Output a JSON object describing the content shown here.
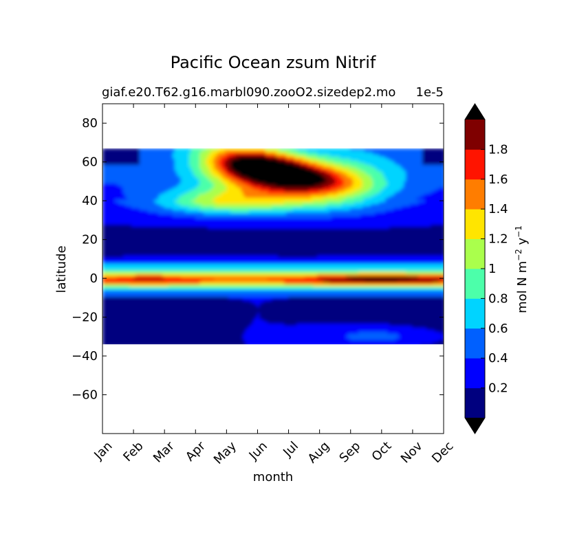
{
  "chart_data": {
    "type": "heatmap",
    "title": "Pacific Ocean zsum Nitrif",
    "subtitle": "giaf.e20.T62.g16.marbl090.zooO2.sizedep2.mo",
    "scale_label": "1e-5",
    "xlabel": "month",
    "ylabel": "latitude",
    "x_ticks": [
      "Jan",
      "Feb",
      "Mar",
      "Apr",
      "May",
      "Jun",
      "Jul",
      "Aug",
      "Sep",
      "Oct",
      "Nov",
      "Dec"
    ],
    "xlim": [
      0,
      11
    ],
    "y_ticks": [
      "80",
      "60",
      "40",
      "20",
      "0",
      "−20",
      "−40",
      "−60"
    ],
    "y_tick_values": [
      80,
      60,
      40,
      20,
      0,
      -20,
      -40,
      -60
    ],
    "ylim": [
      -80,
      90
    ],
    "data_lat_range": [
      -34,
      67
    ],
    "colorbar": {
      "label_main": "mol N m",
      "label_exp1": "−2",
      "label_mid": "  y",
      "label_exp2": "−1",
      "levels": [
        0,
        0.2,
        0.4,
        0.6,
        0.8,
        1.0,
        1.2,
        1.4,
        1.6,
        1.8,
        2.0
      ],
      "tick_labels": [
        "0.2",
        "0.4",
        "0.6",
        "0.8",
        "1",
        "1.2",
        "1.4",
        "1.6",
        "1.8"
      ],
      "tick_values": [
        0.2,
        0.4,
        0.6,
        0.8,
        1.0,
        1.2,
        1.4,
        1.6,
        1.8
      ],
      "colors": [
        "#00007f",
        "#0000ff",
        "#0060ff",
        "#00d4ff",
        "#4cffaa",
        "#aaff4c",
        "#ffe500",
        "#ff7d00",
        "#ff1400",
        "#7f0000"
      ],
      "under_color": "#000000",
      "over_color": "#000000"
    },
    "features": [
      {
        "name": "north-background",
        "lat": [
          57,
          67
        ],
        "month": [
          0,
          11
        ],
        "value": 0.45
      },
      {
        "name": "northern-bloom",
        "lat_center": 57,
        "month_peak": 5.6,
        "peak_value": 2.2
      },
      {
        "name": "subtropical-south",
        "lat": [
          -34,
          -10
        ],
        "month": [
          0,
          11
        ],
        "value": 0.2
      },
      {
        "name": "equatorial-band",
        "lat_center": -1,
        "month": [
          0,
          11
        ],
        "peak_value": 1.7
      },
      {
        "name": "equatorial-oct-max",
        "lat_center": -1,
        "month_peak": 9.0,
        "peak_value": 1.7
      }
    ]
  }
}
